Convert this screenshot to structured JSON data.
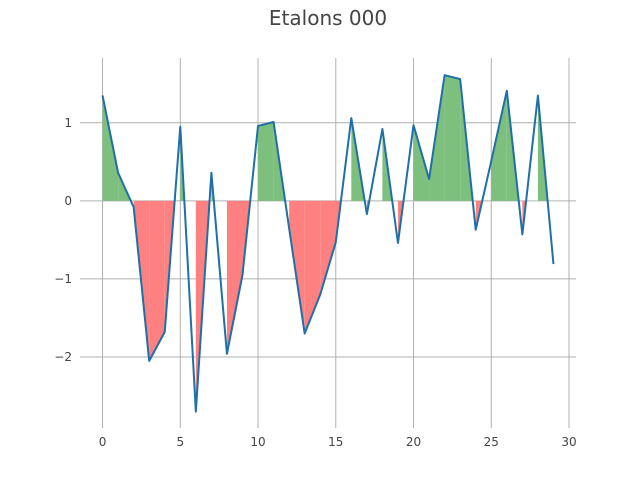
{
  "chart_data": {
    "type": "line",
    "title": "Etalons 000",
    "xlabel": "",
    "ylabel": "",
    "xlim": [
      -1.45,
      30.45
    ],
    "ylim": [
      -2.91,
      1.83
    ],
    "x_ticks": [
      0,
      5,
      10,
      15,
      20,
      25,
      30
    ],
    "y_ticks": [
      -2,
      -1,
      0,
      1
    ],
    "y_tick_labels": [
      "−2",
      "−1",
      "0",
      "1"
    ],
    "grid": true,
    "legend": "none",
    "x": [
      0,
      1,
      2,
      3,
      4,
      5,
      6,
      7,
      8,
      9,
      10,
      11,
      12,
      13,
      14,
      15,
      16,
      17,
      18,
      19,
      20,
      21,
      22,
      23,
      24,
      25,
      26,
      27,
      28,
      29
    ],
    "series": [
      {
        "values": [
          1.35,
          0.36,
          -0.08,
          -2.05,
          -1.68,
          0.95,
          -2.7,
          0.36,
          -1.96,
          -0.95,
          0.96,
          1.01,
          -0.35,
          -1.7,
          -1.2,
          -0.53,
          1.06,
          -0.17,
          0.92,
          -0.54,
          0.97,
          0.28,
          1.61,
          1.56,
          -0.37,
          0.51,
          1.41,
          -0.43,
          1.35,
          -0.81
        ]
      }
    ],
    "colors": {
      "line": "#1f6fa8",
      "positive_fill": "#7dbf7d",
      "negative_fill": "#ff8080",
      "grid": "#b0b0b0",
      "text": "#444444"
    }
  }
}
